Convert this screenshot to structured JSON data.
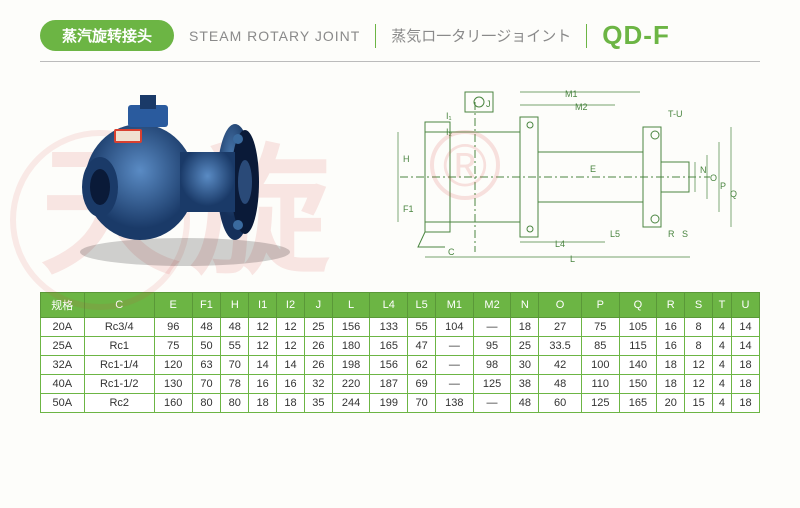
{
  "header": {
    "badge_cn": "蒸汽旋转接头",
    "title_en": "STEAM ROTARY JOINT",
    "title_jp": "蒸気ロ一タリ一ジョイント",
    "code": "QD-F"
  },
  "watermark": {
    "text": "天旋",
    "symbol": "®"
  },
  "diagram_labels": [
    "I1",
    "I2",
    "J",
    "H",
    "F1",
    "C",
    "L4",
    "L5",
    "L",
    "M1",
    "M2",
    "E",
    "T-U",
    "N",
    "O",
    "P",
    "Q",
    "R",
    "S"
  ],
  "table": {
    "headers": [
      "规格",
      "C",
      "E",
      "F1",
      "H",
      "I1",
      "I2",
      "J",
      "L",
      "L4",
      "L5",
      "M1",
      "M2",
      "N",
      "O",
      "P",
      "Q",
      "R",
      "S",
      "T",
      "U"
    ],
    "rows": [
      [
        "20A",
        "Rc3/4",
        "96",
        "48",
        "48",
        "12",
        "12",
        "25",
        "156",
        "133",
        "55",
        "104",
        "—",
        "18",
        "27",
        "75",
        "105",
        "16",
        "8",
        "4",
        "14"
      ],
      [
        "25A",
        "Rc1",
        "75",
        "50",
        "55",
        "12",
        "12",
        "26",
        "180",
        "165",
        "47",
        "—",
        "95",
        "25",
        "33.5",
        "85",
        "115",
        "16",
        "8",
        "4",
        "14"
      ],
      [
        "32A",
        "Rc1-1/4",
        "120",
        "63",
        "70",
        "14",
        "14",
        "26",
        "198",
        "156",
        "62",
        "—",
        "98",
        "30",
        "42",
        "100",
        "140",
        "18",
        "12",
        "4",
        "18"
      ],
      [
        "40A",
        "Rc1-1/2",
        "130",
        "70",
        "78",
        "16",
        "16",
        "32",
        "220",
        "187",
        "69",
        "—",
        "125",
        "38",
        "48",
        "110",
        "150",
        "18",
        "12",
        "4",
        "18"
      ],
      [
        "50A",
        "Rc2",
        "160",
        "80",
        "80",
        "18",
        "18",
        "35",
        "244",
        "199",
        "70",
        "138",
        "—",
        "48",
        "60",
        "125",
        "165",
        "20",
        "15",
        "4",
        "18"
      ]
    ]
  },
  "colors": {
    "green": "#6cb544",
    "product_blue": "#2a5b9e",
    "product_dark": "#1a3a68",
    "diagram_line": "#4a8540",
    "watermark": "rgba(216,60,60,0.12)"
  }
}
